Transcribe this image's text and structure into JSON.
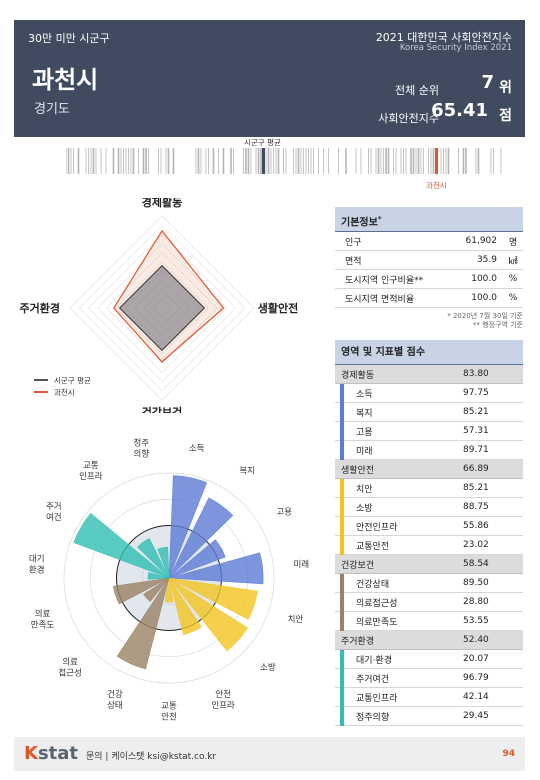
{
  "header": {
    "category": "30만 미만 시군구",
    "title": "2021 대한민국 사회안전지수",
    "subtitle": "Korea Security Index 2021",
    "city": "과천시",
    "province": "경기도",
    "rank_label": "전체 순위",
    "rank_value": "7",
    "rank_unit": "위",
    "score_label": "사회안전지수",
    "score_value": "65.41",
    "score_unit": "점"
  },
  "strip": {
    "avg_label": "시군구 평균",
    "self_label": "과천시",
    "avg_color": "#404b5f",
    "self_color": "#e0552b"
  },
  "radar1": {
    "axes": [
      "경제활동",
      "생활안전",
      "건강보건",
      "주거환경"
    ],
    "values": [
      83.8,
      66.89,
      58.54,
      52.4
    ],
    "average": [
      46,
      46,
      46,
      46
    ],
    "legend_avg": "시군구 평균",
    "legend_self": "과천시"
  },
  "info": {
    "title": "기본정보",
    "title_mark": "*",
    "rows": [
      {
        "label": "인구",
        "value": "61,902",
        "unit": "명"
      },
      {
        "label": "면적",
        "value": "35.9",
        "unit": "㎢"
      },
      {
        "label": "도시지역 인구비율**",
        "value": "100.0",
        "unit": "%"
      },
      {
        "label": "도시지역 면적비율",
        "value": "100.0",
        "unit": "%"
      }
    ],
    "note1": "* 2020년 7월 30일 기준",
    "note2": "** 행정구역 기준"
  },
  "scores": {
    "title": "영역 및 지표별 점수",
    "domains": [
      {
        "name": "경제활동",
        "score": "83.80",
        "color": "#5b7bd5",
        "items": [
          {
            "name": "소득",
            "score": "97.75"
          },
          {
            "name": "복지",
            "score": "85.21"
          },
          {
            "name": "고용",
            "score": "57.31"
          },
          {
            "name": "미래",
            "score": "89.71"
          }
        ]
      },
      {
        "name": "생활안전",
        "score": "66.89",
        "color": "#f2c420",
        "items": [
          {
            "name": "치안",
            "score": "85.21"
          },
          {
            "name": "소방",
            "score": "88.75"
          },
          {
            "name": "안전인프라",
            "score": "55.86"
          },
          {
            "name": "교통안전",
            "score": "23.02"
          }
        ]
      },
      {
        "name": "건강보건",
        "score": "58.54",
        "color": "#9a8264",
        "items": [
          {
            "name": "건강상태",
            "score": "89.50"
          },
          {
            "name": "의료접근성",
            "score": "28.80"
          },
          {
            "name": "의료만족도",
            "score": "53.55"
          }
        ]
      },
      {
        "name": "주거환경",
        "score": "52.40",
        "color": "#2fbfb3",
        "items": [
          {
            "name": "대기·환경",
            "score": "20.07"
          },
          {
            "name": "주거여건",
            "score": "96.79"
          },
          {
            "name": "교통인프라",
            "score": "42.14"
          },
          {
            "name": "정주의향",
            "score": "29.45"
          }
        ]
      }
    ]
  },
  "radar2": {
    "labels": [
      "소득",
      "복지",
      "고용",
      "미래",
      "치안",
      "소방",
      "안전\n인프라",
      "교통\n안전",
      "건강\n상태",
      "의료\n접근성",
      "의료\n만족도",
      "대기\n환경",
      "주거\n여건",
      "교통\n인프라",
      "정주\n의향"
    ],
    "values": [
      97.75,
      85.21,
      57.31,
      89.71,
      85.21,
      88.75,
      55.86,
      23.02,
      89.5,
      28.8,
      53.55,
      20.07,
      96.79,
      42.14,
      29.45
    ],
    "colors": [
      "#5b7bd5",
      "#5b7bd5",
      "#5b7bd5",
      "#5b7bd5",
      "#f2c420",
      "#f2c420",
      "#f2c420",
      "#f2c420",
      "#9a8264",
      "#9a8264",
      "#9a8264",
      "#2fbfb3",
      "#2fbfb3",
      "#2fbfb3",
      "#2fbfb3"
    ],
    "average": 50
  },
  "footer": {
    "logo_k": "K",
    "logo_rest": "stat",
    "contact": "문의 | 케이스탯 ksi@kstat.co.kr",
    "page": "94"
  }
}
